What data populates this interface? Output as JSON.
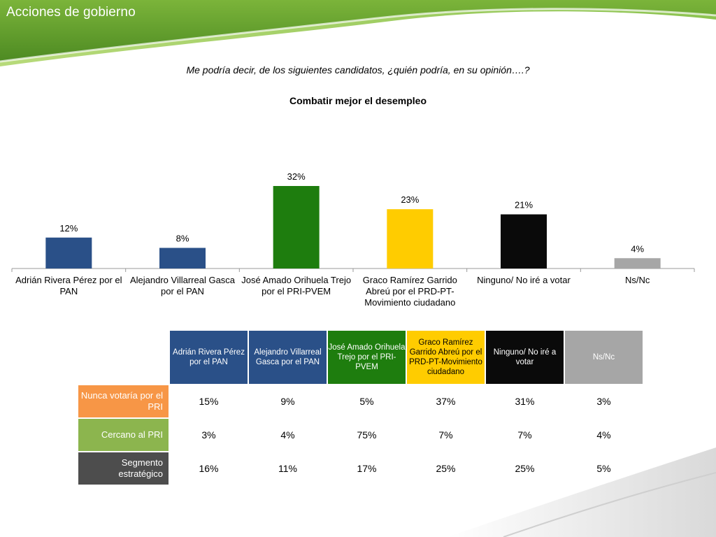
{
  "slide_title": "Acciones de gobierno",
  "question": "Me podría decir, de los siguientes candidatos, ¿quién podría, en su opinión….?",
  "chart_data": {
    "type": "bar",
    "title": "Combatir mejor el desempleo",
    "categories": [
      "Adrián Rivera Pérez por el PAN",
      "Alejandro Villarreal Gasca por el PAN",
      "José Amado Orihuela Trejo por el PRI-PVEM",
      "Graco Ramírez Garrido Abreú por el PRD-PT-Movimiento ciudadano",
      "Ninguno/ No iré a votar",
      "Ns/Nc"
    ],
    "values": [
      12,
      8,
      32,
      23,
      21,
      4
    ],
    "value_labels": [
      "12%",
      "8%",
      "32%",
      "23%",
      "21%",
      "4%"
    ],
    "colors": [
      "#2a5088",
      "#2a5088",
      "#1e7d0e",
      "#ffcc00",
      "#0a0a0a",
      "#a6a6a6"
    ],
    "ylim": [
      0,
      40
    ],
    "grid": false,
    "legend": "none"
  },
  "table": {
    "headers": [
      {
        "label": "Adrián Rivera Pérez por el PAN",
        "bg": "#2a5088",
        "fg": "#ffffff"
      },
      {
        "label": "Alejandro Villarreal Gasca por el PAN",
        "bg": "#2a5088",
        "fg": "#ffffff"
      },
      {
        "label": "José Amado Orihuela Trejo por el PRI-PVEM",
        "bg": "#1e7d0e",
        "fg": "#ffffff"
      },
      {
        "label": "Graco Ramírez Garrido Abreú por el PRD-PT-Movimiento ciudadano",
        "bg": "#ffcc00",
        "fg": "#000000"
      },
      {
        "label": "Ninguno/ No iré a votar",
        "bg": "#0a0a0a",
        "fg": "#ffffff"
      },
      {
        "label": "Ns/Nc",
        "bg": "#a6a6a6",
        "fg": "#ffffff"
      }
    ],
    "rows": [
      {
        "label": "Nunca votaría por el PRI",
        "bg": "#f79646",
        "values": [
          "15%",
          "9%",
          "5%",
          "37%",
          "31%",
          "3%"
        ]
      },
      {
        "label": "Cercano al PRI",
        "bg": "#8cb54e",
        "values": [
          "3%",
          "4%",
          "75%",
          "7%",
          "7%",
          "4%"
        ]
      },
      {
        "label": "Segmento estratégico",
        "bg": "#4d4d4d",
        "values": [
          "16%",
          "11%",
          "17%",
          "25%",
          "25%",
          "5%"
        ]
      }
    ]
  },
  "theme": {
    "header_green": "#5a9a2a",
    "light_green": "#a8d06a"
  }
}
